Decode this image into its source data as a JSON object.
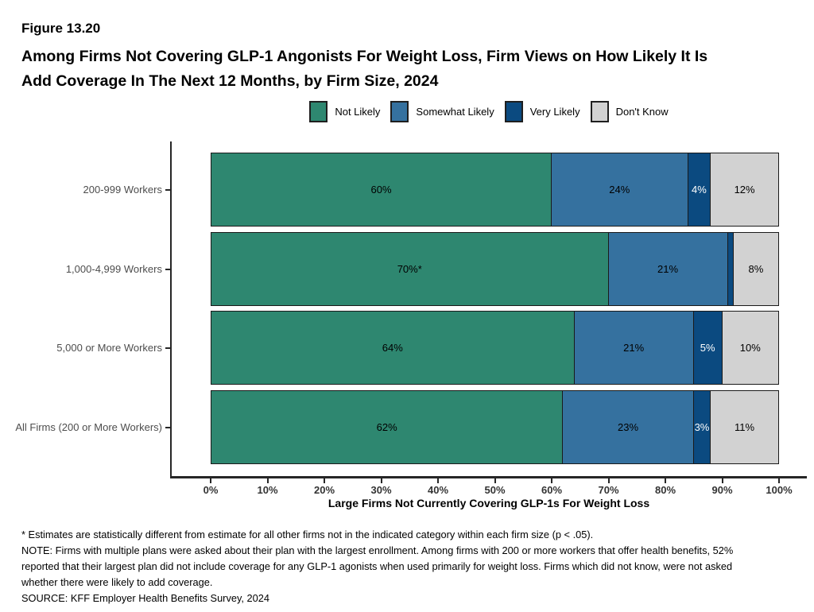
{
  "header": {
    "figure_number": "Figure 13.20",
    "title_line1": "Among Firms Not Covering GLP-1 Angonists For Weight Loss, Firm Views on How Likely It Is",
    "title_line2": "Add Coverage In The Next 12 Months, by Firm Size, 2024"
  },
  "chart_data": {
    "type": "bar",
    "subtype": "horizontal_stacked_percent",
    "title": "Figure 13.20: Among Firms Not Covering GLP-1 Angonists For Weight Loss, Firm Views on How Likely It Is Add Coverage In The Next 12 Months, by Firm Size, 2024",
    "categories": [
      "200-999 Workers",
      "1,000-4,999 Workers",
      "5,000 or More Workers",
      "All Firms (200 or More Workers)"
    ],
    "series": [
      {
        "name": "Not Likely",
        "color": "#2E8770",
        "label_color": "#000000",
        "values": [
          60,
          70,
          64,
          62
        ],
        "labels": [
          "60%",
          "70%*",
          "64%",
          "62%"
        ]
      },
      {
        "name": "Somewhat Likely",
        "color": "#35719F",
        "label_color": "#000000",
        "values": [
          24,
          21,
          21,
          23
        ],
        "labels": [
          "24%",
          "21%",
          "21%",
          "23%"
        ]
      },
      {
        "name": "Very Likely",
        "color": "#0B4A80",
        "label_color": "#FFFFFF",
        "values": [
          4,
          1,
          5,
          3
        ],
        "labels": [
          "4%",
          "",
          "5%",
          "3%"
        ]
      },
      {
        "name": "Don't Know",
        "color": "#D2D2D2",
        "label_color": "#000000",
        "values": [
          12,
          8,
          10,
          11
        ],
        "labels": [
          "12%",
          "8%",
          "10%",
          "11%"
        ]
      }
    ],
    "xlabel": "Large Firms Not Currently Covering GLP-1s For Weight Loss",
    "ylabel": "",
    "x_ticks": [
      "0%",
      "10%",
      "20%",
      "30%",
      "40%",
      "50%",
      "60%",
      "70%",
      "80%",
      "90%",
      "100%"
    ],
    "xlim": [
      0,
      100
    ],
    "grid": false,
    "legend_position": "top"
  },
  "footnotes": {
    "asterisk": "* Estimates are statistically different from estimate for all other firms not in the indicated category within each firm size (p < .05).",
    "note": "NOTE: Firms with multiple plans were asked about their plan with the largest enrollment.  Among firms with 200 or more workers that offer health benefits, 52% reported that their largest plan did not include coverage for any GLP-1 agonists when used primarily for weight loss.  Firms which did not know, were not asked whether there were likely to add coverage.",
    "source": "SOURCE: KFF Employer Health Benefits Survey, 2024"
  }
}
